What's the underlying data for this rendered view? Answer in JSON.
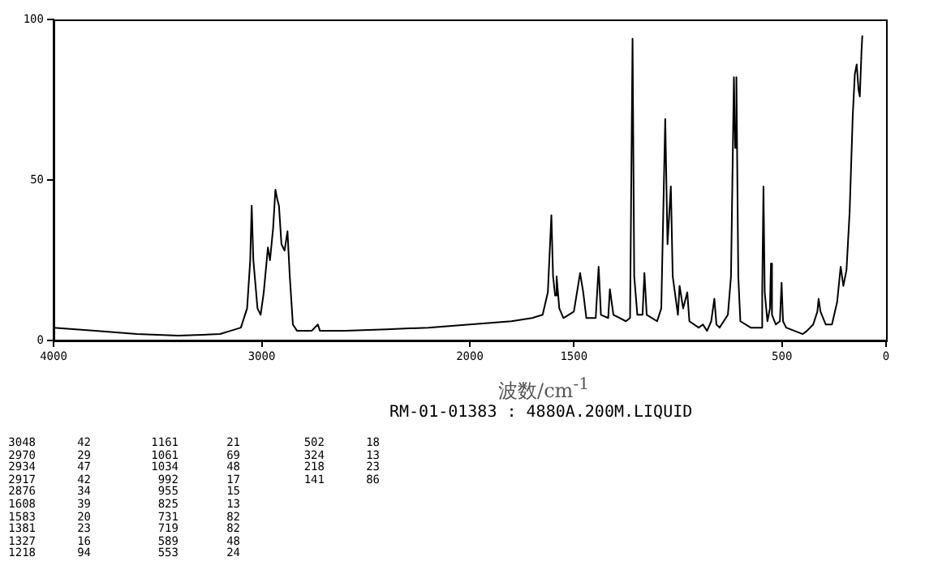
{
  "chart_data": {
    "type": "line",
    "xlabel": "波数/cm$^{-1}$",
    "xlim": [
      4000,
      0
    ],
    "xticks": [
      4000,
      3000,
      2000,
      1500,
      500,
      0
    ],
    "ylim": [
      0,
      100
    ],
    "yticks": [
      0,
      50,
      100
    ],
    "grid": false,
    "legend": false,
    "marker": "none",
    "line_style": "solid",
    "series": [
      {
        "color": "#000000",
        "x": [
          4000,
          3800,
          3600,
          3400,
          3200,
          3150,
          3100,
          3070,
          3055,
          3048,
          3040,
          3020,
          3005,
          2990,
          2970,
          2960,
          2945,
          2934,
          2925,
          2917,
          2905,
          2890,
          2876,
          2865,
          2850,
          2830,
          2760,
          2730,
          2720,
          2600,
          2400,
          2200,
          2000,
          1800,
          1700,
          1650,
          1625,
          1608,
          1600,
          1590,
          1583,
          1570,
          1550,
          1500,
          1470,
          1455,
          1440,
          1395,
          1381,
          1370,
          1335,
          1327,
          1310,
          1250,
          1230,
          1218,
          1210,
          1195,
          1170,
          1161,
          1150,
          1100,
          1080,
          1061,
          1050,
          1034,
          1025,
          1000,
          992,
          975,
          955,
          945,
          900,
          880,
          860,
          840,
          825,
          815,
          800,
          780,
          760,
          745,
          731,
          725,
          719,
          710,
          700,
          650,
          600,
          595,
          589,
          583,
          570,
          558,
          553,
          548,
          530,
          510,
          502,
          495,
          480,
          440,
          400,
          380,
          350,
          330,
          324,
          315,
          290,
          260,
          235,
          218,
          205,
          190,
          175,
          160,
          150,
          141,
          132,
          126,
          118,
          114
        ],
        "values": [
          4,
          3,
          2,
          1.5,
          2,
          3,
          4,
          10,
          25,
          42,
          25,
          10,
          8,
          15,
          29,
          25,
          35,
          47,
          44,
          42,
          30,
          28,
          34,
          20,
          5,
          3,
          3,
          5,
          3,
          3,
          3.5,
          4,
          5,
          6,
          7,
          8,
          15,
          39,
          20,
          14,
          20,
          10,
          7,
          9,
          21,
          15,
          7,
          7,
          23,
          8,
          7,
          16,
          8,
          6,
          7,
          94,
          20,
          8,
          8,
          21,
          8,
          6,
          10,
          69,
          30,
          48,
          20,
          8,
          17,
          10,
          15,
          6,
          4,
          5,
          3,
          6,
          13,
          5,
          4,
          6,
          8,
          20,
          82,
          60,
          82,
          20,
          6,
          4,
          4,
          15,
          48,
          15,
          6,
          10,
          24,
          8,
          5,
          6,
          18,
          6,
          4,
          3,
          2,
          3,
          5,
          9,
          13,
          9,
          5,
          5,
          12,
          23,
          17,
          22,
          40,
          70,
          83,
          86,
          78,
          76,
          90,
          95
        ]
      }
    ],
    "annotations": [
      "RM-01-01383 : 4880A.200M.LIQUID",
      "3048 42",
      "2970 29",
      "2934 47",
      "2917 42",
      "2876 34",
      "1608 39",
      "1583 20",
      "1381 23",
      "1327 16",
      "1218 94",
      "1161 21",
      "1061 69",
      "1034 48",
      "992 17",
      "955 15",
      "825 13",
      "731 82",
      "719 82",
      "589 48",
      "553 24",
      "502 18",
      "324 13",
      "218 23",
      "141 86"
    ]
  }
}
